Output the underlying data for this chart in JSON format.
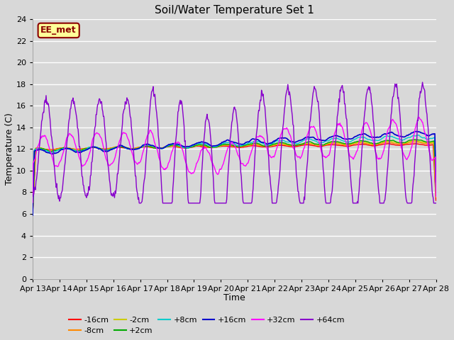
{
  "title": "Soil/Water Temperature Set 1",
  "xlabel": "Time",
  "ylabel": "Temperature (C)",
  "ylim": [
    0,
    24
  ],
  "yticks": [
    0,
    2,
    4,
    6,
    8,
    10,
    12,
    14,
    16,
    18,
    20,
    22,
    24
  ],
  "xtick_labels": [
    "Apr 13",
    "Apr 14",
    "Apr 15",
    "Apr 16",
    "Apr 17",
    "Apr 18",
    "Apr 19",
    "Apr 20",
    "Apr 21",
    "Apr 22",
    "Apr 23",
    "Apr 24",
    "Apr 25",
    "Apr 26",
    "Apr 27",
    "Apr 28"
  ],
  "bg_color": "#d8d8d8",
  "grid_color": "#ffffff",
  "annotation_text": "EE_met",
  "annotation_bg": "#ffff99",
  "annotation_border": "#8b0000",
  "series": {
    "-16cm": {
      "color": "#ff0000",
      "lw": 1.0
    },
    "-8cm": {
      "color": "#ff8800",
      "lw": 1.0
    },
    "-2cm": {
      "color": "#cccc00",
      "lw": 1.0
    },
    "+2cm": {
      "color": "#00aa00",
      "lw": 1.0
    },
    "+8cm": {
      "color": "#00cccc",
      "lw": 1.0
    },
    "+16cm": {
      "color": "#0000cc",
      "lw": 1.2
    },
    "+32cm": {
      "color": "#ff00ff",
      "lw": 1.0
    },
    "+64cm": {
      "color": "#8800cc",
      "lw": 1.0
    }
  },
  "legend_row1": [
    "-16cm",
    "-8cm",
    "-2cm",
    "+2cm",
    "+8cm",
    "+16cm"
  ],
  "legend_row2": [
    "+32cm",
    "+64cm"
  ]
}
